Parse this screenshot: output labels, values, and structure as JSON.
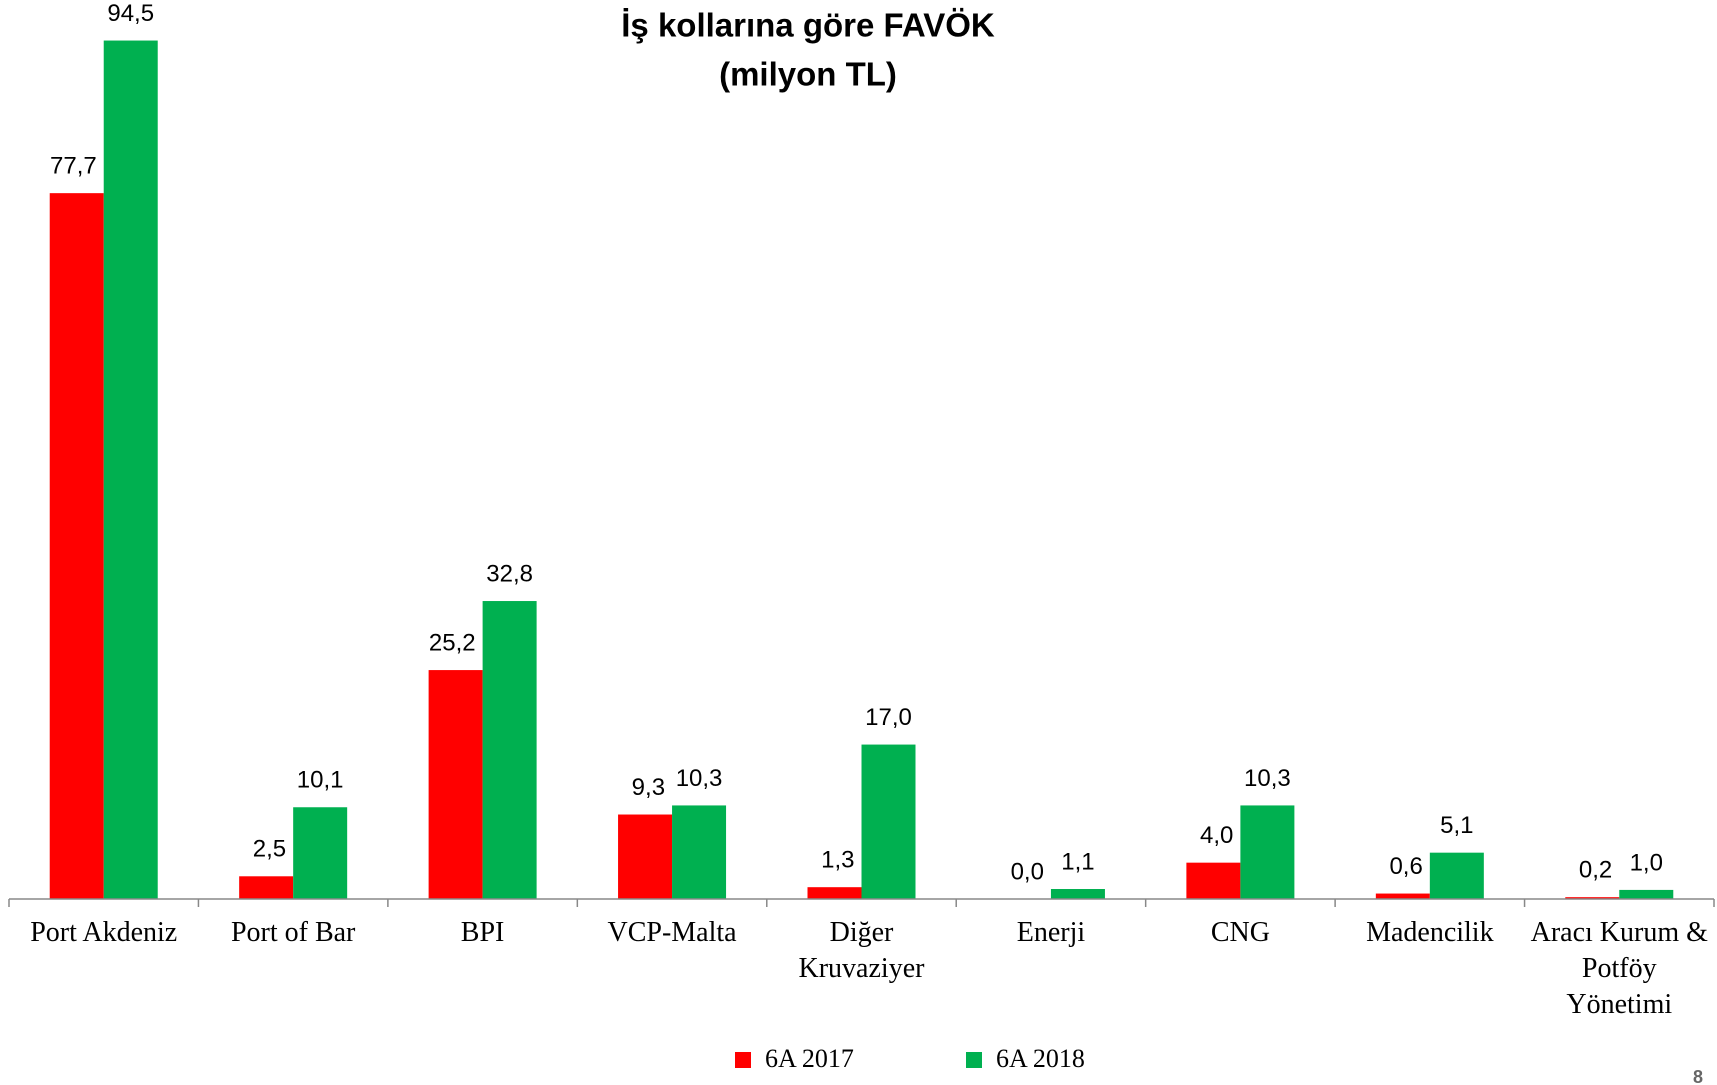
{
  "chart_data": {
    "type": "bar",
    "title": "İş kollarına göre FAVÖK",
    "subtitle": "(milyon TL)",
    "categories": [
      "Port Akdeniz",
      "Port of Bar",
      "BPI",
      "VCP-Malta",
      "Diğer Kruvaziyer",
      "Enerji",
      "CNG",
      "Madencilik",
      "Aracı Kurum & Potföy Yönetimi"
    ],
    "series": [
      {
        "name": "6A 2017",
        "color": "#ff0000",
        "values": [
          77.7,
          2.5,
          25.2,
          9.3,
          1.3,
          0.0,
          4.0,
          0.6,
          0.2
        ],
        "value_labels": [
          "77,7",
          "2,5",
          "25,2",
          "9,3",
          "1,3",
          "0,0",
          "4,0",
          "0,6",
          "0,2"
        ]
      },
      {
        "name": "6A 2018",
        "color": "#00b050",
        "values": [
          94.5,
          10.1,
          32.8,
          10.3,
          17.0,
          1.1,
          10.3,
          5.1,
          1.0
        ],
        "value_labels": [
          "94,5",
          "10,1",
          "32,8",
          "10,3",
          "17,0",
          "1,1",
          "10,3",
          "5,1",
          "1,0"
        ]
      }
    ],
    "ylim": [
      0,
      95
    ],
    "legend": "bottom",
    "page_number": "8"
  }
}
